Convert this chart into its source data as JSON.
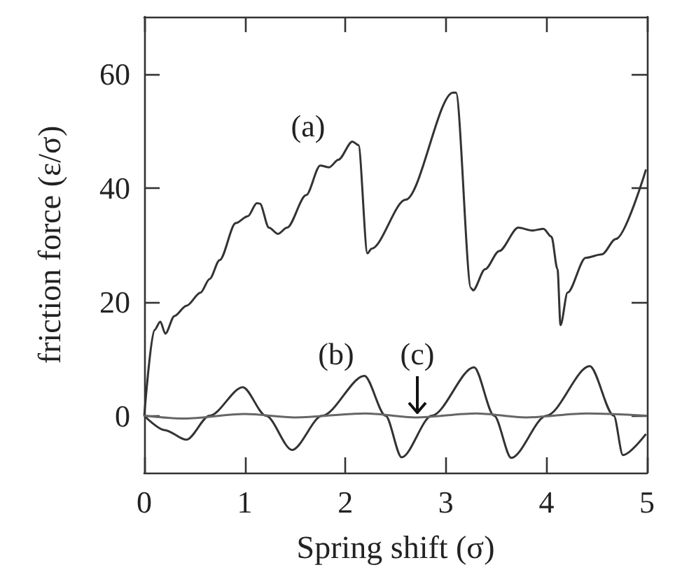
{
  "chart_data": {
    "type": "line",
    "xlabel": "Spring shift (σ)",
    "ylabel": "friction force (ε/σ)",
    "xlim": [
      0,
      5
    ],
    "ylim": [
      -10,
      70
    ],
    "xticks": [
      0,
      1,
      2,
      3,
      4,
      5
    ],
    "yticks": [
      0,
      20,
      40,
      60
    ],
    "series": [
      {
        "color": "#333333",
        "x": [
          0,
          0.1,
          0.16,
          0.21,
          0.3,
          0.42,
          0.56,
          0.65,
          0.75,
          0.91,
          1.03,
          1.12,
          1.15,
          1.24,
          1.33,
          1.42,
          1.61,
          1.75,
          1.84,
          1.93,
          2.07,
          2.13,
          2.22,
          2.26,
          2.6,
          3.07,
          3.1,
          3.25,
          3.27,
          3.39,
          3.53,
          3.72,
          3.86,
          3.97,
          4.05,
          4.11,
          4.14,
          4.21,
          4.39,
          4.55,
          4.69,
          4.99
        ],
        "values": [
          0,
          15,
          16.5,
          14.4,
          17.5,
          19.3,
          21.6,
          24,
          27.3,
          33.8,
          35,
          37.3,
          37.2,
          33,
          31.9,
          33,
          38.7,
          43.9,
          43.6,
          44.9,
          48.1,
          47.5,
          28.5,
          29.3,
          37.9,
          56.7,
          56.7,
          22.4,
          22,
          25.7,
          28.9,
          33,
          32.5,
          32.8,
          31.4,
          25.7,
          15.9,
          21.6,
          27.7,
          28.3,
          31,
          43.2
        ]
      },
      {
        "color": "#333333",
        "x": [
          0,
          0.2,
          0.42,
          0.65,
          0.98,
          1.21,
          1.47,
          1.77,
          2.19,
          2.4,
          2.56,
          2.86,
          3.28,
          3.48,
          3.65,
          4.0,
          4.43,
          4.67,
          4.76,
          4.99
        ],
        "values": [
          0,
          -2.5,
          -4.2,
          0,
          5,
          0,
          -6,
          0,
          7,
          0,
          -7.3,
          0,
          8.5,
          0,
          -7.4,
          0,
          8.7,
          0,
          -6.9,
          -3.2
        ]
      },
      {
        "color": "#666666",
        "x": [
          0,
          0.4,
          1,
          1.5,
          2.2,
          2.7,
          3.3,
          3.8,
          4.4,
          5
        ],
        "values": [
          0,
          -0.5,
          0.3,
          -0.3,
          0.4,
          -0.3,
          0.4,
          -0.3,
          0.4,
          0
        ]
      }
    ],
    "annotations": [
      "(a)",
      "(b)",
      "(c)"
    ]
  }
}
